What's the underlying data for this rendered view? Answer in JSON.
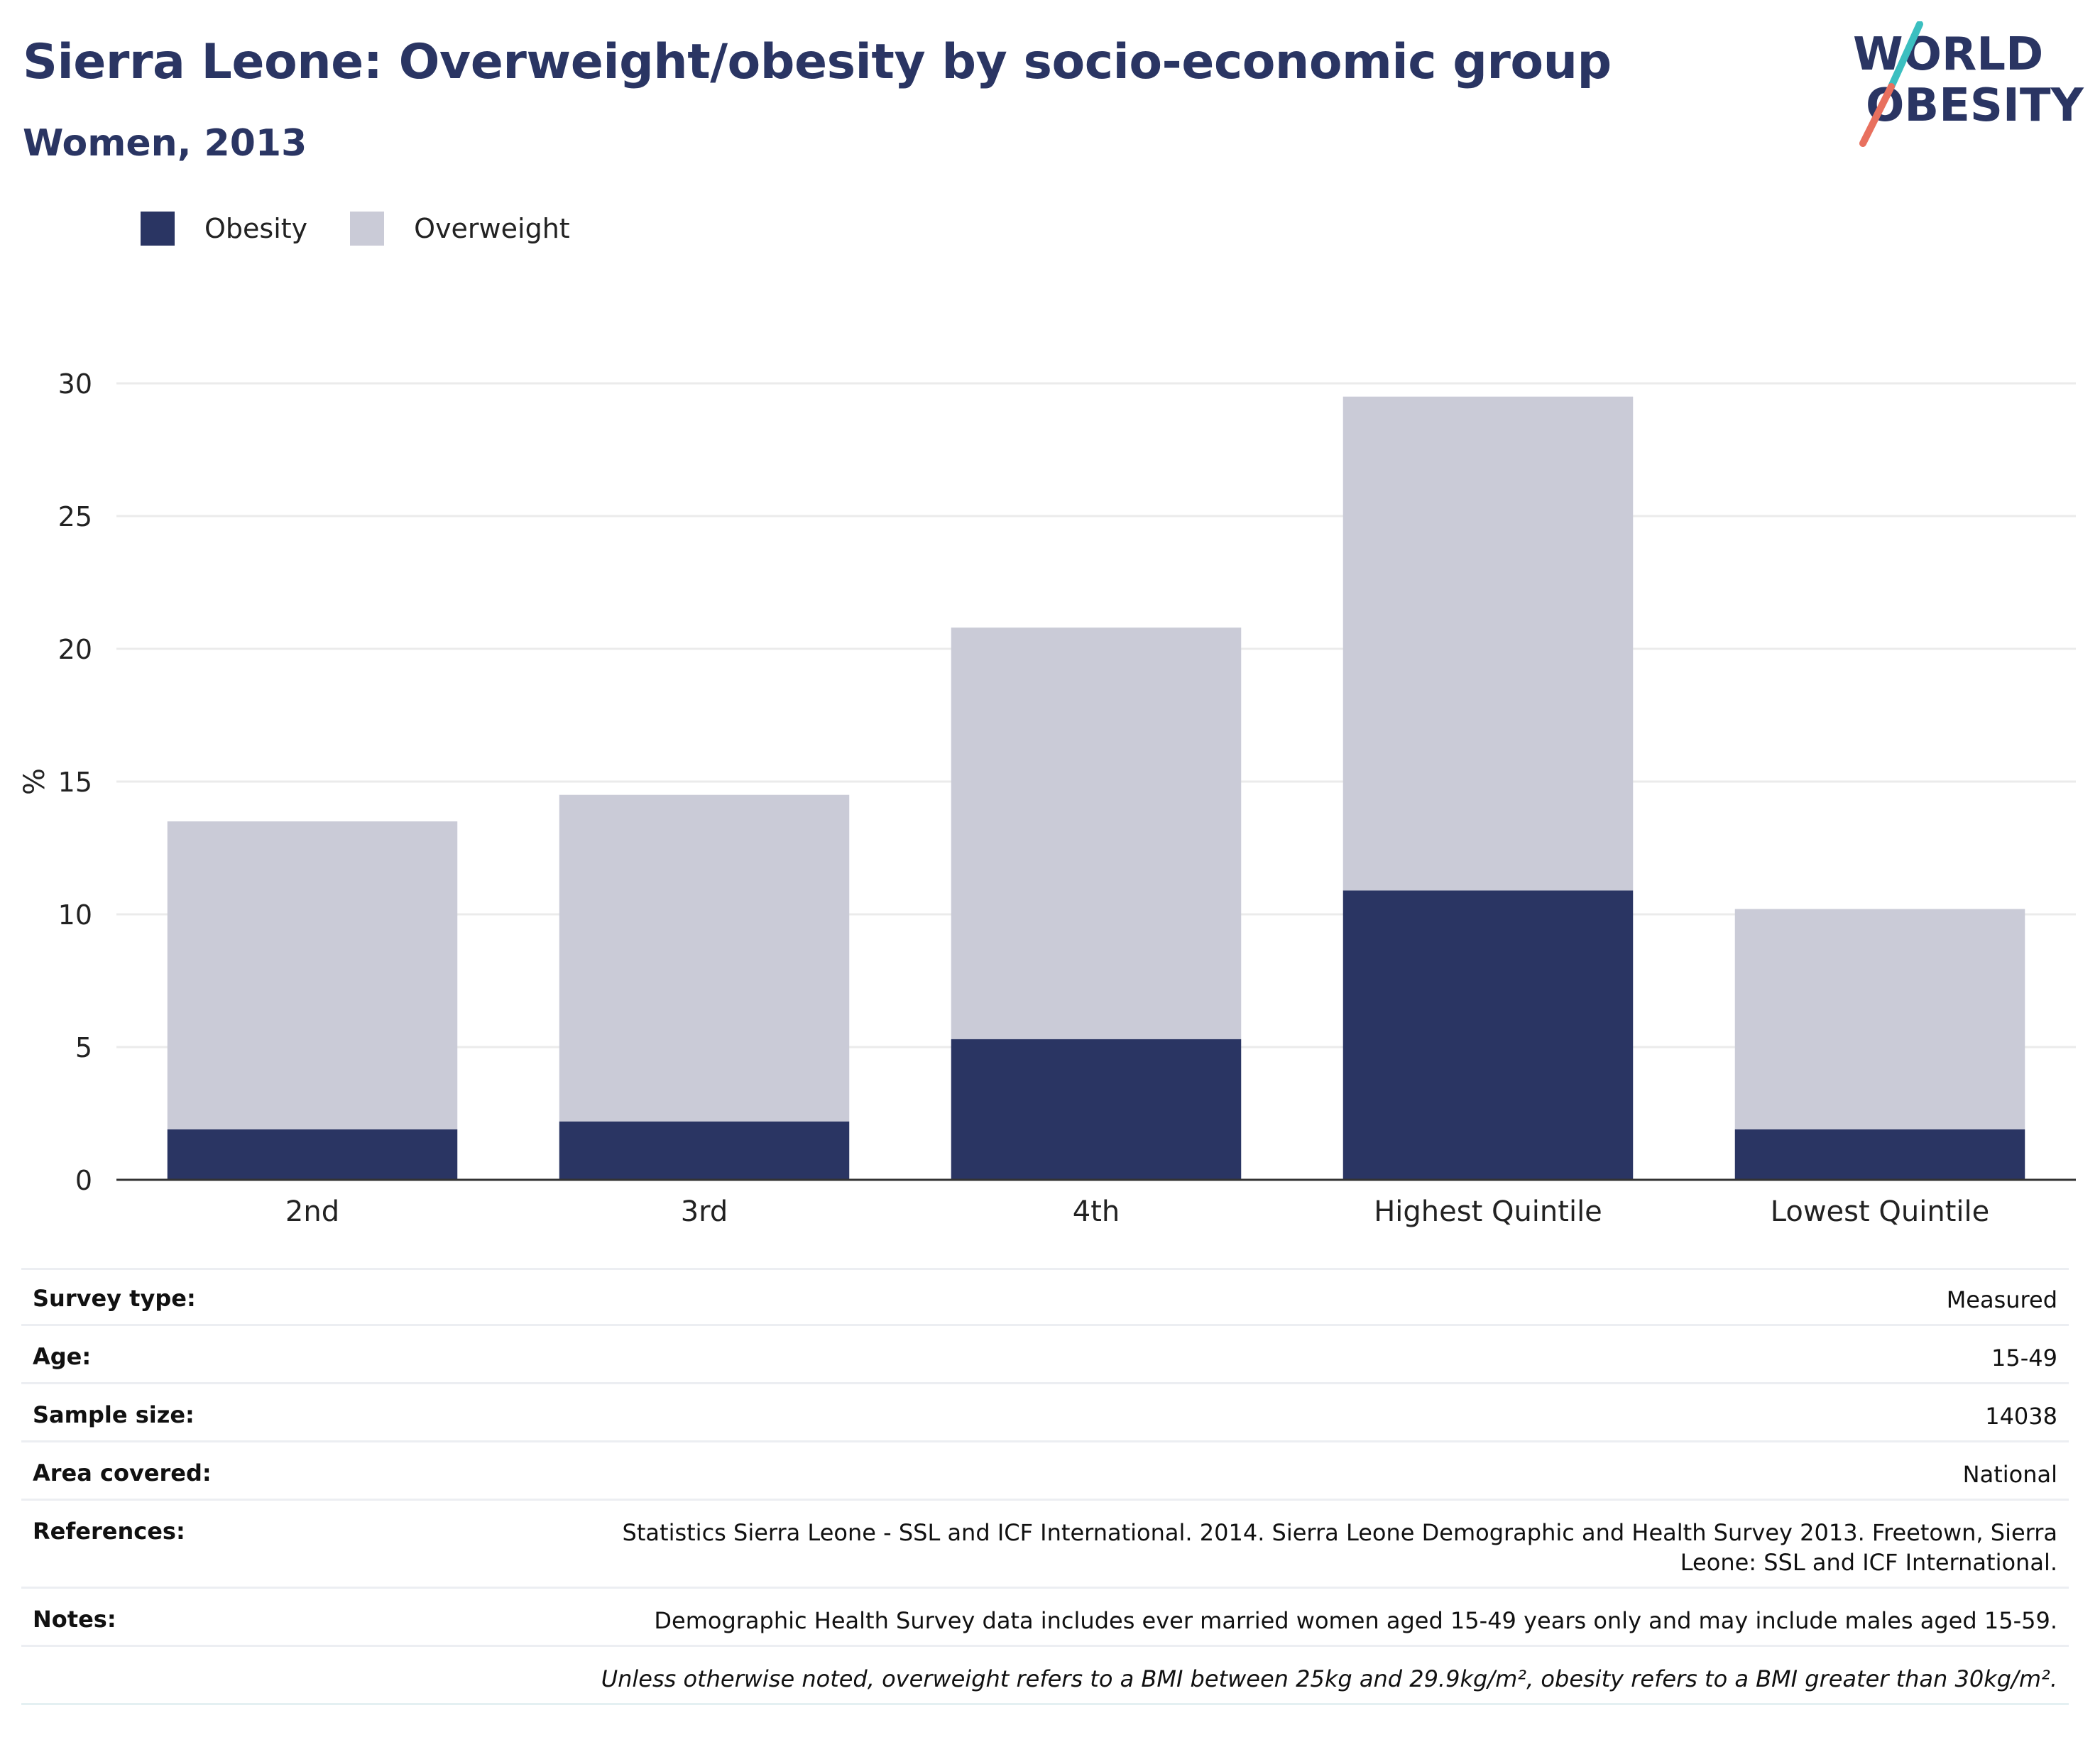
{
  "header": {
    "title": "Sierra Leone: Overweight/obesity by socio-economic group",
    "subtitle": "Women, 2013"
  },
  "logo": {
    "line1": "WORLD",
    "line2": "OBESITY",
    "colors": {
      "text": "#2a3563",
      "slash_top": "#3bbfc0",
      "slash_bottom": "#e8705e"
    }
  },
  "legend": {
    "items": [
      {
        "label": "Obesity",
        "color": "#2a3563"
      },
      {
        "label": "Overweight",
        "color": "#cacbd7"
      }
    ]
  },
  "chart_data": {
    "type": "bar",
    "stacked": true,
    "categories": [
      "2nd",
      "3rd",
      "4th",
      "Highest Quintile",
      "Lowest Quintile"
    ],
    "series": [
      {
        "name": "Obesity",
        "values": [
          1.9,
          2.2,
          5.3,
          10.9,
          1.9
        ],
        "color": "#2a3563"
      },
      {
        "name": "Overweight",
        "values": [
          11.6,
          12.3,
          15.5,
          18.6,
          8.3
        ],
        "color": "#cacbd7"
      }
    ],
    "ylabel": "%",
    "ylim": [
      0,
      30
    ],
    "yticks": [
      0,
      5,
      10,
      15,
      20,
      25,
      30
    ],
    "grid": true,
    "legend": "top-left"
  },
  "meta": {
    "rows": [
      {
        "label": "Survey type:",
        "value": "Measured"
      },
      {
        "label": "Age:",
        "value": "15-49"
      },
      {
        "label": "Sample size:",
        "value": "14038"
      },
      {
        "label": "Area covered:",
        "value": "National"
      },
      {
        "label": "References:",
        "value": "Statistics Sierra Leone - SSL and ICF International. 2014. Sierra Leone Demographic and Health Survey 2013. Freetown, Sierra Leone: SSL and ICF International."
      },
      {
        "label": "Notes:",
        "value": "Demographic Health Survey data includes ever married women aged 15-49 years only and may include males aged 15-59."
      }
    ],
    "footnote": "Unless otherwise noted, overweight refers to a BMI between 25kg and 29.9kg/m², obesity refers to a BMI greater than 30kg/m²."
  }
}
